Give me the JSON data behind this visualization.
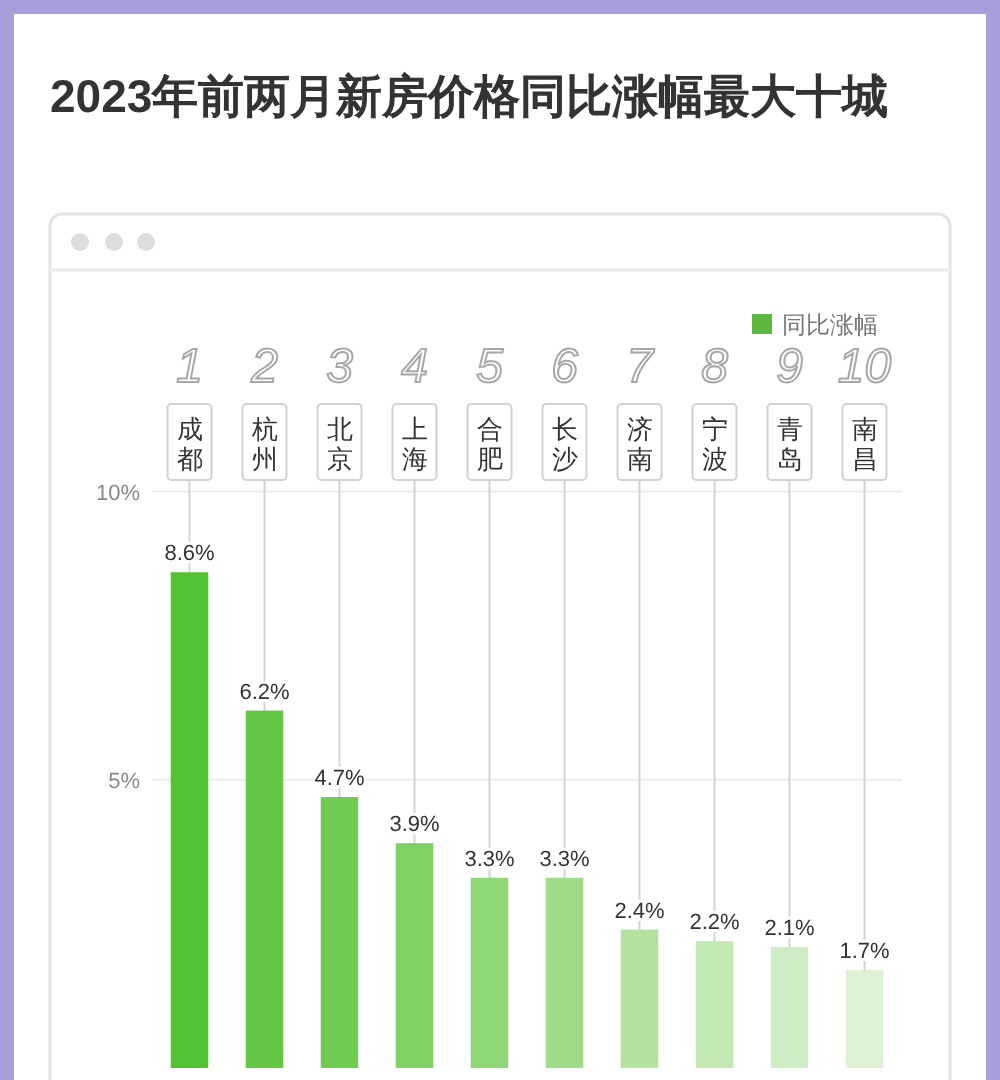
{
  "chart_data": {
    "type": "bar",
    "title": "2023年前两月新房价格同比涨幅最大十城",
    "categories": [
      "成都",
      "杭州",
      "北京",
      "上海",
      "合肥",
      "长沙",
      "济南",
      "宁波",
      "青岛",
      "南昌"
    ],
    "series": [
      {
        "name": "同比涨幅",
        "color": "#5cb83e",
        "colors": [
          "#52c232",
          "#62c745",
          "#70cb53",
          "#80d064",
          "#8fd676",
          "#9fdb88",
          "#b2e29e",
          "#c2e8b3",
          "#cfedc5",
          "#dcf1d5"
        ],
        "values": [
          8.6,
          6.2,
          4.7,
          3.9,
          3.3,
          3.3,
          2.4,
          2.2,
          2.1,
          1.7
        ],
        "value_labels": [
          "8.6%",
          "6.2%",
          "4.7%",
          "3.9%",
          "3.3%",
          "3.3%",
          "2.4%",
          "2.2%",
          "2.1%",
          "1.7%"
        ]
      }
    ],
    "ylim": [
      0,
      10.2
    ],
    "yticks": [
      {
        "value": 5,
        "label": "5%"
      },
      {
        "value": 10,
        "label": "10%"
      }
    ],
    "grid": true,
    "legend": "top right",
    "annotations": [
      "1",
      "2",
      "3",
      "4",
      "5",
      "6",
      "7",
      "8",
      "9",
      "10"
    ]
  }
}
